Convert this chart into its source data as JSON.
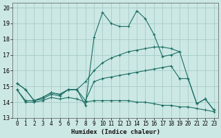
{
  "xlabel": "Humidex (Indice chaleur)",
  "xlim": [
    -0.5,
    23.5
  ],
  "ylim": [
    13,
    20.3
  ],
  "yticks": [
    13,
    14,
    15,
    16,
    17,
    18,
    19,
    20
  ],
  "xticks": [
    0,
    1,
    2,
    3,
    4,
    5,
    6,
    7,
    8,
    9,
    10,
    11,
    12,
    13,
    14,
    15,
    16,
    17,
    18,
    19,
    20,
    21,
    22,
    23
  ],
  "bg_color": "#cce8e4",
  "grid_color": "#aacfcb",
  "line_color": "#1a6e64",
  "lines": [
    {
      "x": [
        0,
        1,
        2,
        3,
        4,
        5,
        6,
        7,
        8,
        9,
        10,
        11,
        12,
        13,
        14,
        15,
        16,
        17,
        18,
        19,
        20,
        21,
        22,
        23
      ],
      "y": [
        15.2,
        14.8,
        14.1,
        14.3,
        14.6,
        14.5,
        14.8,
        14.8,
        13.8,
        18.1,
        19.7,
        19.0,
        18.8,
        18.8,
        19.8,
        19.3,
        18.3,
        16.9,
        17.0,
        17.2,
        15.5,
        13.9,
        14.2,
        13.5
      ]
    },
    {
      "x": [
        0,
        1,
        2,
        3,
        4,
        5,
        6,
        7,
        8,
        9,
        10,
        11,
        12,
        13,
        14,
        15,
        16,
        17,
        18,
        19
      ],
      "y": [
        15.2,
        14.8,
        14.1,
        14.3,
        14.6,
        14.5,
        14.8,
        14.8,
        15.3,
        16.0,
        16.5,
        16.8,
        17.0,
        17.2,
        17.3,
        17.4,
        17.5,
        17.5,
        17.4,
        17.2
      ]
    },
    {
      "x": [
        0,
        1,
        2,
        3,
        4,
        5,
        6,
        7,
        8,
        9,
        10,
        11,
        12,
        13,
        14,
        15,
        16,
        17,
        18,
        19,
        20,
        21,
        22,
        23
      ],
      "y": [
        14.8,
        14.1,
        14.1,
        14.2,
        14.5,
        14.4,
        14.8,
        14.8,
        14.1,
        15.3,
        15.5,
        15.6,
        15.7,
        15.8,
        15.9,
        16.0,
        16.1,
        16.2,
        16.3,
        15.5,
        15.5,
        13.9,
        14.2,
        13.5
      ]
    },
    {
      "x": [
        0,
        1,
        2,
        3,
        4,
        5,
        6,
        7,
        8,
        9,
        10,
        11,
        12,
        13,
        14,
        15,
        16,
        17,
        18,
        19,
        20,
        21,
        22,
        23
      ],
      "y": [
        14.8,
        14.0,
        14.0,
        14.1,
        14.3,
        14.2,
        14.3,
        14.2,
        14.0,
        14.1,
        14.1,
        14.1,
        14.1,
        14.1,
        14.0,
        14.0,
        13.9,
        13.8,
        13.8,
        13.7,
        13.7,
        13.6,
        13.5,
        13.4
      ]
    }
  ]
}
